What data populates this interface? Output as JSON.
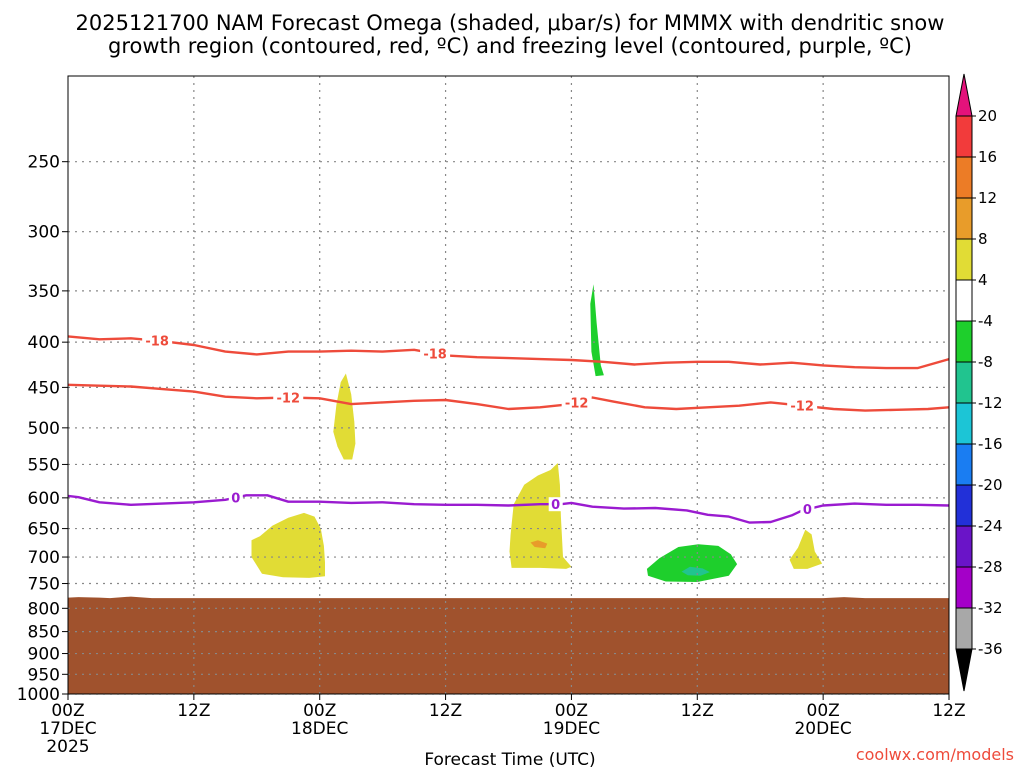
{
  "title_line1": "2025121700 NAM Forecast Omega (shaded, μbar/s) for MMMX with dendritic snow",
  "title_line2": "growth region (contoured, red, ºC) and freezing level (contoured, purple, ºC)",
  "credit": "coolwx.com/models",
  "colors": {
    "terrain": "#a0522d",
    "temp_contour": "#ee4b3b",
    "freezing_contour": "#9a1bd0",
    "grid": "#888888"
  },
  "chart_data": {
    "type": "heatmap",
    "xlabel": "Forecast Time (UTC)",
    "ylabel": "",
    "x_range_hours": [
      0,
      84
    ],
    "y_range_mb": [
      1000,
      200
    ],
    "y_scale": "log",
    "grid": true,
    "x_ticks": [
      {
        "hour": 0,
        "l1": "00Z",
        "l2": "17DEC",
        "l3": "2025"
      },
      {
        "hour": 12,
        "l1": "12Z",
        "l2": "",
        "l3": ""
      },
      {
        "hour": 24,
        "l1": "00Z",
        "l2": "18DEC",
        "l3": ""
      },
      {
        "hour": 36,
        "l1": "12Z",
        "l2": "",
        "l3": ""
      },
      {
        "hour": 48,
        "l1": "00Z",
        "l2": "19DEC",
        "l3": ""
      },
      {
        "hour": 60,
        "l1": "12Z",
        "l2": "",
        "l3": ""
      },
      {
        "hour": 72,
        "l1": "00Z",
        "l2": "20DEC",
        "l3": ""
      },
      {
        "hour": 84,
        "l1": "12Z",
        "l2": "",
        "l3": ""
      }
    ],
    "y_ticks": [
      250,
      300,
      350,
      400,
      450,
      500,
      550,
      600,
      650,
      700,
      750,
      800,
      850,
      900,
      950,
      1000
    ],
    "terrain_top_mb": [
      [
        0,
        778
      ],
      [
        1,
        777
      ],
      [
        3,
        778
      ],
      [
        4,
        779
      ],
      [
        6,
        776
      ],
      [
        8,
        779
      ],
      [
        24,
        779
      ],
      [
        30,
        779
      ],
      [
        60,
        779
      ],
      [
        72,
        779
      ],
      [
        74,
        777
      ],
      [
        76,
        779
      ],
      [
        84,
        779
      ]
    ],
    "contours": [
      {
        "label": "-18",
        "kind": "temperature",
        "points": [
          [
            0,
            394
          ],
          [
            3,
            397
          ],
          [
            6,
            396
          ],
          [
            9,
            399
          ],
          [
            12,
            403
          ],
          [
            15,
            410
          ],
          [
            18,
            413
          ],
          [
            21,
            410
          ],
          [
            24,
            410
          ],
          [
            27,
            409
          ],
          [
            30,
            410
          ],
          [
            33,
            408
          ],
          [
            36,
            414
          ],
          [
            39,
            416
          ],
          [
            42,
            417
          ],
          [
            45,
            418
          ],
          [
            48,
            419
          ],
          [
            51,
            421
          ],
          [
            54,
            424
          ],
          [
            57,
            422
          ],
          [
            60,
            421
          ],
          [
            63,
            421
          ],
          [
            66,
            424
          ],
          [
            69,
            422
          ],
          [
            72,
            425
          ],
          [
            75,
            427
          ],
          [
            78,
            428
          ],
          [
            81,
            428
          ],
          [
            84,
            418
          ]
        ],
        "label_hours": [
          8.5,
          35
        ]
      },
      {
        "label": "-12",
        "kind": "temperature",
        "points": [
          [
            0,
            447
          ],
          [
            3,
            448
          ],
          [
            6,
            449
          ],
          [
            9,
            452
          ],
          [
            12,
            455
          ],
          [
            15,
            461
          ],
          [
            18,
            463
          ],
          [
            21,
            462
          ],
          [
            24,
            463
          ],
          [
            27,
            470
          ],
          [
            30,
            468
          ],
          [
            33,
            466
          ],
          [
            36,
            465
          ],
          [
            39,
            470
          ],
          [
            42,
            476
          ],
          [
            45,
            474
          ],
          [
            48,
            470
          ],
          [
            50,
            462
          ],
          [
            52,
            467
          ],
          [
            55,
            474
          ],
          [
            58,
            476
          ],
          [
            61,
            474
          ],
          [
            64,
            472
          ],
          [
            67,
            468
          ],
          [
            70,
            472
          ],
          [
            73,
            476
          ],
          [
            76,
            478
          ],
          [
            79,
            477
          ],
          [
            82,
            476
          ],
          [
            84,
            474
          ]
        ],
        "label_hours": [
          21,
          48.5,
          70
        ]
      },
      {
        "label": "0",
        "kind": "freezing",
        "points": [
          [
            0,
            597
          ],
          [
            1,
            599
          ],
          [
            3,
            607
          ],
          [
            6,
            611
          ],
          [
            9,
            609
          ],
          [
            12,
            607
          ],
          [
            15,
            603
          ],
          [
            17,
            596
          ],
          [
            19,
            596
          ],
          [
            21,
            606
          ],
          [
            24,
            606
          ],
          [
            27,
            608
          ],
          [
            30,
            607
          ],
          [
            33,
            610
          ],
          [
            36,
            611
          ],
          [
            39,
            611
          ],
          [
            42,
            612
          ],
          [
            45,
            610
          ],
          [
            47,
            610
          ],
          [
            48,
            608
          ],
          [
            50,
            614
          ],
          [
            53,
            617
          ],
          [
            56,
            616
          ],
          [
            59,
            620
          ],
          [
            61,
            627
          ],
          [
            63,
            630
          ],
          [
            65,
            640
          ],
          [
            67,
            639
          ],
          [
            69,
            628
          ],
          [
            70,
            620
          ],
          [
            72,
            612
          ],
          [
            75,
            609
          ],
          [
            78,
            611
          ],
          [
            81,
            611
          ],
          [
            84,
            612
          ]
        ],
        "label_hours": [
          16,
          46.5,
          70.5
        ]
      }
    ],
    "omega_areas": [
      {
        "value_range": [
          4,
          8
        ],
        "color": "#e1dc35",
        "points": [
          [
            17.5,
            670
          ],
          [
            18.3,
            663
          ],
          [
            19.5,
            645
          ],
          [
            21,
            632
          ],
          [
            22.5,
            624
          ],
          [
            23.5,
            630
          ],
          [
            24.1,
            650
          ],
          [
            24.4,
            680
          ],
          [
            24.5,
            710
          ],
          [
            24.5,
            736
          ],
          [
            23,
            739
          ],
          [
            20.5,
            738
          ],
          [
            18.5,
            731
          ],
          [
            17.5,
            700
          ]
        ]
      },
      {
        "value_range": [
          4,
          8
        ],
        "color": "#e1dc35",
        "points": [
          [
            25.3,
            505
          ],
          [
            25.6,
            470
          ],
          [
            26,
            444
          ],
          [
            26.5,
            434
          ],
          [
            27,
            458
          ],
          [
            27.3,
            492
          ],
          [
            27.4,
            521
          ],
          [
            27.1,
            543
          ],
          [
            26.3,
            543
          ],
          [
            25.7,
            525
          ]
        ]
      },
      {
        "value_range": [
          4,
          8
        ],
        "color": "#e1dc35",
        "points": [
          [
            42.2,
            660
          ],
          [
            42.5,
            610
          ],
          [
            43.5,
            580
          ],
          [
            44.8,
            566
          ],
          [
            46,
            558
          ],
          [
            46.7,
            548
          ],
          [
            46.9,
            580
          ],
          [
            47,
            630
          ],
          [
            47.2,
            700
          ],
          [
            48,
            718
          ],
          [
            47.5,
            722
          ],
          [
            45,
            720
          ],
          [
            42.3,
            720
          ],
          [
            42.1,
            690
          ]
        ]
      },
      {
        "value_range": [
          8,
          12
        ],
        "color": "#e89c2a",
        "points": [
          [
            44.1,
            674
          ],
          [
            44.8,
            670
          ],
          [
            45.7,
            676
          ],
          [
            45.5,
            684
          ],
          [
            44.5,
            682
          ]
        ]
      },
      {
        "value_range": [
          4,
          8
        ],
        "color": "#e1dc35",
        "points": [
          [
            68.8,
            705
          ],
          [
            69.6,
            683
          ],
          [
            70.3,
            652
          ],
          [
            70.9,
            660
          ],
          [
            71.2,
            690
          ],
          [
            71.9,
            712
          ],
          [
            70.5,
            722
          ],
          [
            69.2,
            722
          ]
        ]
      },
      {
        "value_range": [
          -8,
          -4
        ],
        "color": "#1ecf2c",
        "points": [
          [
            49.8,
            362
          ],
          [
            50.1,
            344
          ],
          [
            50.4,
            380
          ],
          [
            50.8,
            425
          ],
          [
            51.1,
            436
          ],
          [
            50.3,
            437
          ],
          [
            49.9,
            410
          ]
        ]
      },
      {
        "value_range": [
          -8,
          -4
        ],
        "color": "#1ecf2c",
        "points": [
          [
            55.2,
            722
          ],
          [
            56.4,
            702
          ],
          [
            58.2,
            682
          ],
          [
            60.1,
            677
          ],
          [
            62,
            680
          ],
          [
            63.2,
            695
          ],
          [
            63.8,
            713
          ],
          [
            63,
            735
          ],
          [
            60,
            747
          ],
          [
            57,
            746
          ],
          [
            55.3,
            735
          ]
        ]
      },
      {
        "value_range": [
          -12,
          -8
        ],
        "color": "#21c48f",
        "points": [
          [
            58.5,
            727
          ],
          [
            59.3,
            718
          ],
          [
            60.5,
            721
          ],
          [
            61.2,
            728
          ],
          [
            60.3,
            735
          ],
          [
            59.1,
            734
          ]
        ]
      }
    ],
    "colorbar": {
      "segments": [
        {
          "range": [
            -36,
            -32
          ],
          "color": "#a8a8a8"
        },
        {
          "range": [
            -32,
            -28
          ],
          "color": "#a400c8"
        },
        {
          "range": [
            -28,
            -24
          ],
          "color": "#6a14c8"
        },
        {
          "range": [
            -24,
            -20
          ],
          "color": "#2230d8"
        },
        {
          "range": [
            -20,
            -16
          ],
          "color": "#1a7df2"
        },
        {
          "range": [
            -16,
            -12
          ],
          "color": "#1cc5d6"
        },
        {
          "range": [
            -12,
            -8
          ],
          "color": "#21c48f"
        },
        {
          "range": [
            -8,
            -4
          ],
          "color": "#1ecf2c"
        },
        {
          "range": [
            -4,
            4
          ],
          "color": "#ffffff"
        },
        {
          "range": [
            4,
            8
          ],
          "color": "#e1dc35"
        },
        {
          "range": [
            8,
            12
          ],
          "color": "#e89c2a"
        },
        {
          "range": [
            12,
            16
          ],
          "color": "#ec7c26"
        },
        {
          "range": [
            16,
            20
          ],
          "color": "#f23b3b"
        }
      ],
      "low_arrow_color": "#000000",
      "high_arrow_color": "#e4127b",
      "labels": [
        20,
        16,
        12,
        8,
        4,
        -4,
        -8,
        -12,
        -16,
        -20,
        -24,
        -28,
        -32,
        -36
      ]
    }
  }
}
